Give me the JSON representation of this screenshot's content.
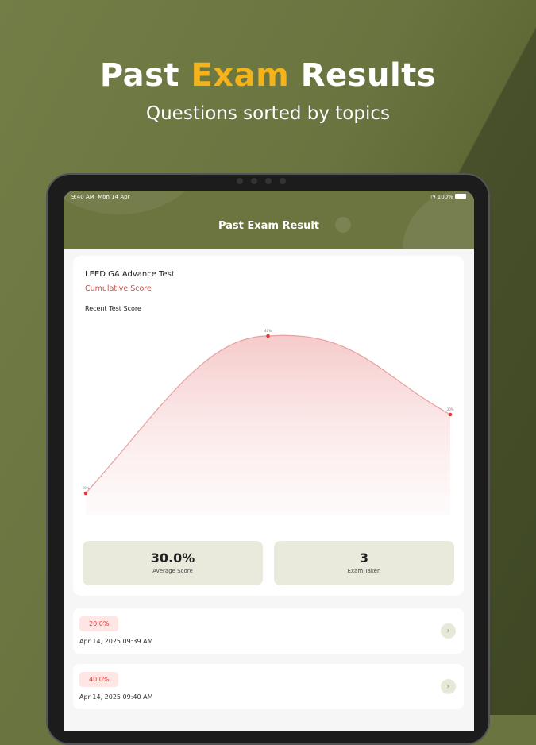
{
  "hero": {
    "title_pre": "Past",
    "title_accent": "Exam",
    "title_post": "Results",
    "subtitle": "Questions sorted by topics"
  },
  "status": {
    "time": "9:40 AM",
    "date": "Mon 14 Apr",
    "battery": "100%"
  },
  "header": {
    "title": "Past Exam Result"
  },
  "card": {
    "title": "LEED GA Advance Test",
    "subtitle": "Cumulative Score",
    "chart_label": "Recent Test Score"
  },
  "chart_data": {
    "type": "area",
    "title": "Recent Test Score",
    "values": [
      20,
      40,
      30
    ],
    "labels": [
      "20%",
      "40%",
      "30%"
    ],
    "color": "#e53935",
    "fill": "#f4c4c4",
    "grid": false
  },
  "stats": [
    {
      "value": "30.0%",
      "label": "Average Score"
    },
    {
      "value": "3",
      "label": "Exam Taken"
    }
  ],
  "results": [
    {
      "score": "20.0%",
      "date": "Apr 14, 2025 09:39 AM"
    },
    {
      "score": "40.0%",
      "date": "Apr 14, 2025 09:40 AM"
    }
  ],
  "colors": {
    "brand": "#6c7440",
    "accent": "#f4b31a"
  }
}
